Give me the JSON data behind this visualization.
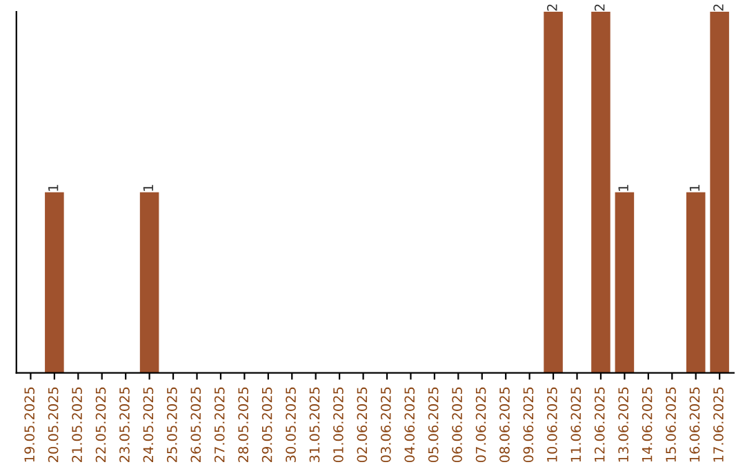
{
  "chart_data": {
    "type": "bar",
    "categories": [
      "19.05.2025",
      "20.05.2025",
      "21.05.2025",
      "22.05.2025",
      "23.05.2025",
      "24.05.2025",
      "25.05.2025",
      "26.05.2025",
      "27.05.2025",
      "28.05.2025",
      "29.05.2025",
      "30.05.2025",
      "31.05.2025",
      "01.06.2025",
      "02.06.2025",
      "03.06.2025",
      "04.06.2025",
      "05.06.2025",
      "06.06.2025",
      "07.06.2025",
      "08.06.2025",
      "09.06.2025",
      "10.06.2025",
      "11.06.2025",
      "12.06.2025",
      "13.06.2025",
      "14.06.2025",
      "15.06.2025",
      "16.06.2025",
      "17.06.2025"
    ],
    "values": [
      0,
      1,
      0,
      0,
      0,
      1,
      0,
      0,
      0,
      0,
      0,
      0,
      0,
      0,
      0,
      0,
      0,
      0,
      0,
      0,
      0,
      0,
      2,
      0,
      2,
      1,
      0,
      0,
      1,
      2
    ],
    "color": "#a0522d",
    "value_labels": [
      null,
      "1",
      null,
      null,
      null,
      "1",
      null,
      null,
      null,
      null,
      null,
      null,
      null,
      null,
      null,
      null,
      null,
      null,
      null,
      null,
      null,
      null,
      "2",
      null,
      "2",
      "1",
      null,
      null,
      "1",
      "2"
    ],
    "grid": false,
    "legend": false
  }
}
